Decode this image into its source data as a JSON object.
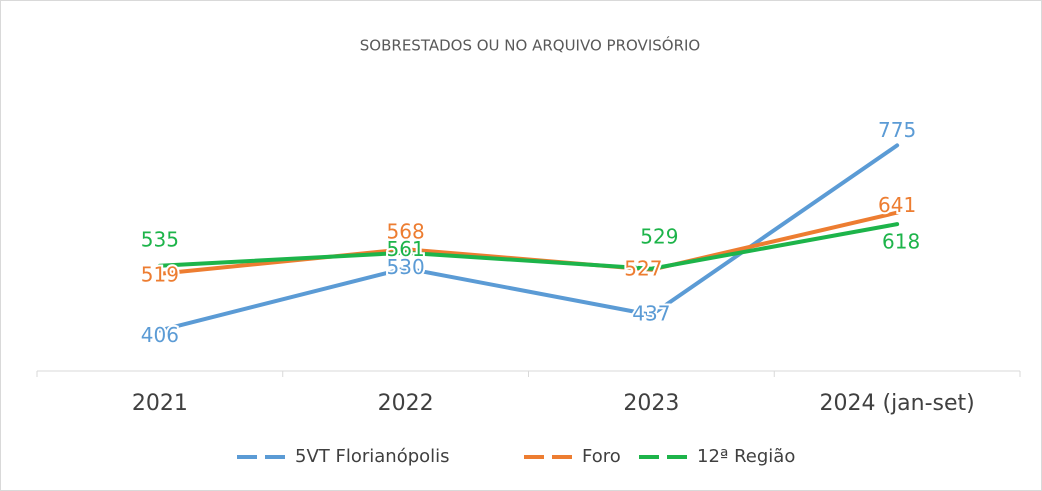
{
  "chart_data": {
    "type": "line",
    "title": "SOBRESTADOS OU NO ARQUIVO PROVISÓRIO",
    "categories": [
      "2021",
      "2022",
      "2023",
      "2024 (jan-set)"
    ],
    "series": [
      {
        "name": "5VT Florianópolis",
        "color": "#5b9bd5",
        "values": [
          406,
          530,
          437,
          775
        ]
      },
      {
        "name": "Foro",
        "color": "#ed7d31",
        "values": [
          519,
          568,
          527,
          641
        ]
      },
      {
        "name": "12ª Região",
        "color": "#1db44a",
        "values": [
          535,
          561,
          529,
          618
        ]
      }
    ],
    "legend": "bottom"
  }
}
